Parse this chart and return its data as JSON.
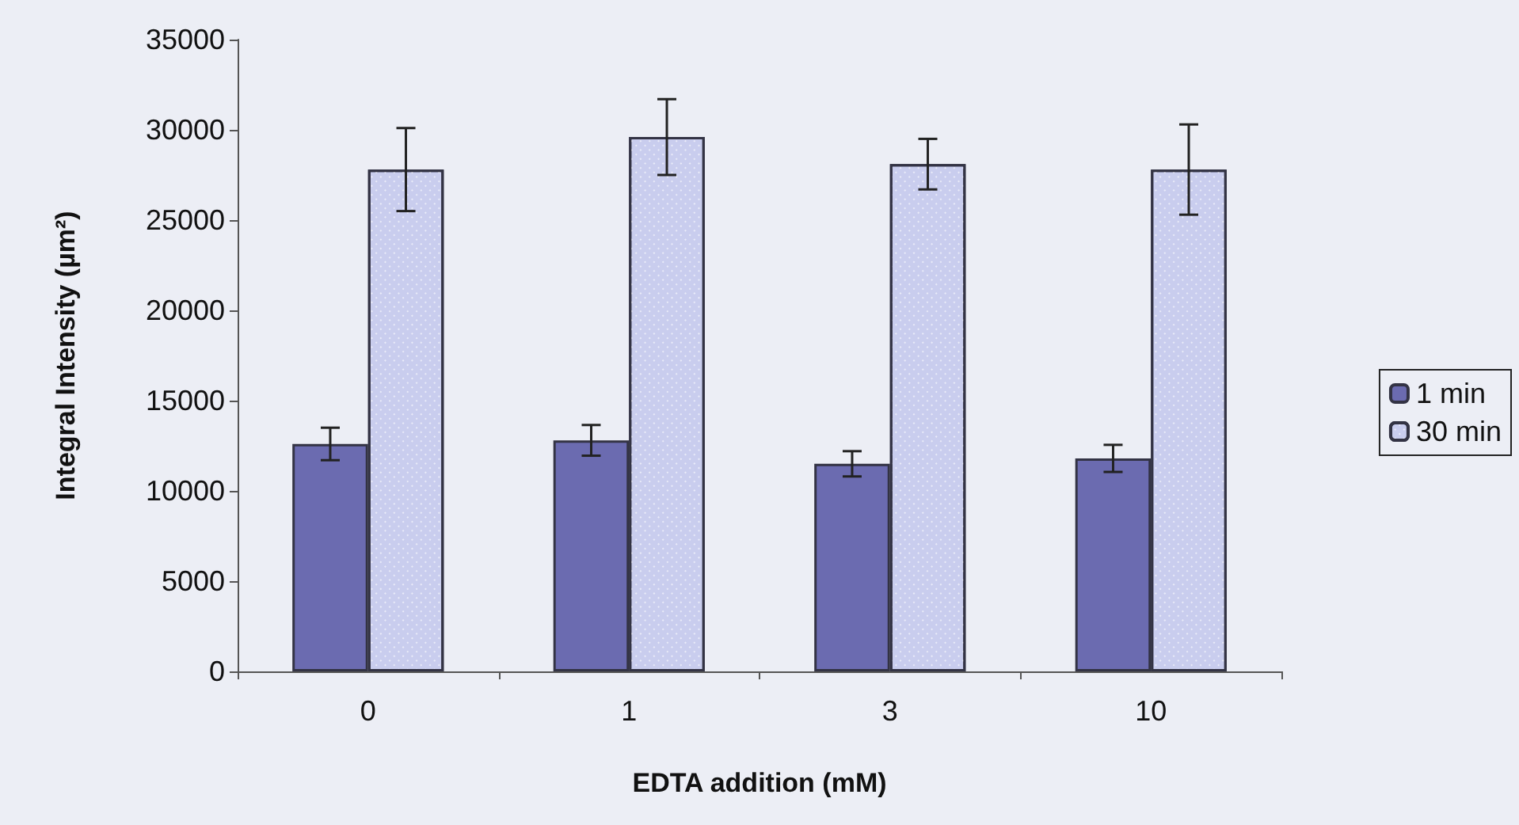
{
  "chart_data": {
    "type": "bar",
    "xlabel": "EDTA addition (mM)",
    "ylabel": "Integral Intensity (µm²)",
    "categories": [
      "0",
      "1",
      "3",
      "10"
    ],
    "series": [
      {
        "name": "1 min",
        "color": "#6b6bb0",
        "values": [
          12600,
          12800,
          11500,
          11800
        ],
        "errors": [
          900,
          850,
          700,
          750
        ]
      },
      {
        "name": "30 min",
        "color": "#c9cdee",
        "values": [
          27800,
          29600,
          28100,
          27800
        ],
        "errors": [
          2300,
          2100,
          1400,
          2500
        ]
      }
    ],
    "ylim": [
      0,
      35000
    ],
    "yticks": [
      0,
      5000,
      10000,
      15000,
      20000,
      25000,
      30000,
      35000
    ],
    "grid": false,
    "legend": "right"
  }
}
